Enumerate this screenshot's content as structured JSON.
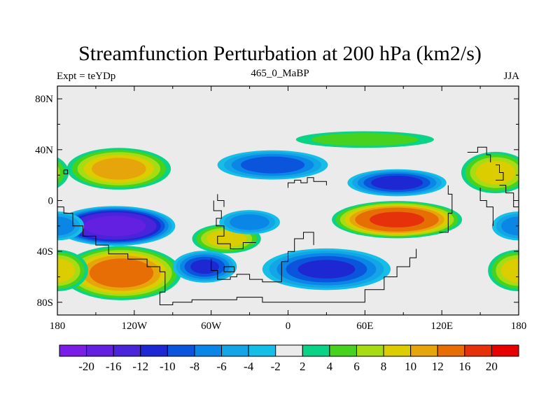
{
  "header": {
    "title": "Streamfunction Perturbation at 200 hPa (km2/s)",
    "left_label": "Expt = teYDp",
    "center_label": "465_0_MaBP",
    "right_label": "JJA"
  },
  "axes": {
    "y_ticks": [
      {
        "label": "80N",
        "lat": 80
      },
      {
        "label": "40N",
        "lat": 40
      },
      {
        "label": "0",
        "lat": 0
      },
      {
        "label": "40S",
        "lat": -40
      },
      {
        "label": "80S",
        "lat": -80
      }
    ],
    "x_ticks": [
      {
        "label": "180",
        "lon": -180
      },
      {
        "label": "120W",
        "lon": -120
      },
      {
        "label": "60W",
        "lon": -60
      },
      {
        "label": "0",
        "lon": 0
      },
      {
        "label": "60E",
        "lon": 60
      },
      {
        "label": "120E",
        "lon": 120
      },
      {
        "label": "180",
        "lon": 180
      }
    ],
    "lon_range": [
      -180,
      180
    ],
    "lat_range": [
      -90,
      90
    ]
  },
  "colorbar": {
    "colors": [
      "#7a1ee6",
      "#6420e0",
      "#4a24d8",
      "#1e28d2",
      "#0a55dc",
      "#0a87e6",
      "#14a5e6",
      "#14bee6",
      "#ebebeb",
      "#0ad287",
      "#46d21e",
      "#a5dc14",
      "#dccd00",
      "#e6a50a",
      "#e66e05",
      "#e6320a",
      "#e60000"
    ],
    "labels": [
      "-20",
      "-16",
      "-12",
      "-10",
      "-8",
      "-6",
      "-4",
      "-2",
      "2",
      "4",
      "6",
      "8",
      "10",
      "12",
      "16",
      "20"
    ]
  },
  "field": {
    "background_color": "#ebebeb",
    "anomalies": [
      {
        "lon": -132,
        "lat": 25,
        "value": 11,
        "rx": 42,
        "ry": 17
      },
      {
        "lon": -135,
        "lat": -20,
        "value": -19,
        "rx": 48,
        "ry": 16
      },
      {
        "lon": -130,
        "lat": -57,
        "value": 14,
        "rx": 48,
        "ry": 22
      },
      {
        "lon": -48,
        "lat": -30,
        "value": 9,
        "rx": 28,
        "ry": 12
      },
      {
        "lon": -30,
        "lat": -17,
        "value": -7,
        "rx": 25,
        "ry": 10
      },
      {
        "lon": -65,
        "lat": -52,
        "value": -10,
        "rx": 26,
        "ry": 13
      },
      {
        "lon": -12,
        "lat": 28,
        "value": -9,
        "rx": 45,
        "ry": 12
      },
      {
        "lon": 30,
        "lat": -54,
        "value": -10,
        "rx": 52,
        "ry": 17
      },
      {
        "lon": 85,
        "lat": -15,
        "value": 17,
        "rx": 52,
        "ry": 15
      },
      {
        "lon": 85,
        "lat": 14,
        "value": -11,
        "rx": 40,
        "ry": 11
      },
      {
        "lon": 60,
        "lat": 48,
        "value": 5,
        "rx": 58,
        "ry": 7
      },
      {
        "lon": 162,
        "lat": 22,
        "value": 9,
        "rx": 28,
        "ry": 17
      },
      {
        "lon": 180,
        "lat": -20,
        "value": -7,
        "rx": 22,
        "ry": 12
      },
      {
        "lon": 180,
        "lat": -55,
        "value": 9,
        "rx": 25,
        "ry": 17
      }
    ]
  }
}
